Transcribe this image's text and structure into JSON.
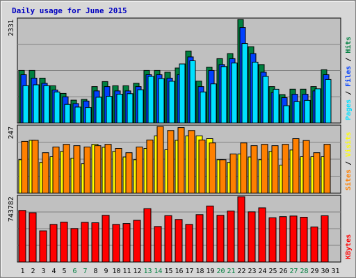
{
  "chart_data": {
    "type": "bar",
    "title": "Daily usage for June 2015",
    "x": [
      "1",
      "2",
      "3",
      "4",
      "5",
      "6",
      "7",
      "8",
      "9",
      "10",
      "11",
      "12",
      "13",
      "14",
      "15",
      "16",
      "17",
      "18",
      "19",
      "20",
      "21",
      "22",
      "23",
      "24",
      "25",
      "26",
      "27",
      "28",
      "29",
      "30",
      "31"
    ],
    "weekend_days": [
      "6",
      "7",
      "13",
      "14",
      "20",
      "21",
      "27",
      "28"
    ],
    "colors": {
      "hits": "#008040",
      "files": "#0040ff",
      "pages": "#00e0ff",
      "visits": "#ffff00",
      "sites": "#ff8000",
      "kbytes": "#ff0000",
      "weekday_label": "#000000",
      "weekend_label": "#008040",
      "title": "#0000c0",
      "panel_bg": "#c0c0c0",
      "frame_bg": "#d7d7d7",
      "grid": "#808080"
    },
    "panels": [
      {
        "id": "hits-files-pages",
        "max_label": "2331",
        "ymax": 2331,
        "side_labels": [
          {
            "text": "Pages",
            "color": "#00e0ff"
          },
          {
            "text": " / ",
            "color": "#000000"
          },
          {
            "text": "Files",
            "color": "#0040ff"
          },
          {
            "text": " / ",
            "color": "#000000"
          },
          {
            "text": "Hits",
            "color": "#008040"
          }
        ],
        "series": [
          {
            "name": "Hits",
            "key": "hits",
            "values": [
              1182,
              1182,
              1010,
              838,
              666,
              514,
              532,
              819,
              933,
              838,
              838,
              895,
              1182,
              1182,
              1144,
              1238,
              1620,
              943,
              1258,
              1448,
              1563,
              2331,
              1717,
              1316,
              819,
              640,
              762,
              762,
              819,
              1200,
              null
            ]
          },
          {
            "name": "Files",
            "key": "files",
            "values": [
              1087,
              1010,
              895,
              743,
              590,
              438,
              495,
              723,
              819,
              723,
              723,
              819,
              1087,
              1087,
              1010,
              1087,
              1487,
              819,
              1183,
              1316,
              1448,
              2150,
              1563,
              1144,
              686,
              571,
              647,
              647,
              723,
              1087,
              null
            ]
          },
          {
            "name": "Pages",
            "key": "pages",
            "values": [
              840,
              860,
              840,
              700,
              420,
              360,
              350,
              580,
              600,
              650,
              660,
              750,
              1050,
              1000,
              940,
              1330,
              1400,
              700,
              880,
              1270,
              1350,
              1790,
              1370,
              1050,
              760,
              390,
              480,
              510,
              770,
              980,
              null
            ]
          }
        ]
      },
      {
        "id": "visits-sites",
        "max_label": "247",
        "ymax": 247,
        "side_labels": [
          {
            "text": "Sites",
            "color": "#ff8000"
          },
          {
            "text": " / ",
            "color": "#000000"
          },
          {
            "text": "Visits",
            "color": "#ffff00"
          }
        ],
        "series": [
          {
            "name": "Visits",
            "key": "visits",
            "values": [
              124,
              196,
              114,
              135,
              155,
              130,
              109,
              181,
              170,
              155,
              134,
              124,
              166,
              212,
              161,
              196,
              212,
              212,
              202,
              124,
              114,
              145,
              134,
              124,
              155,
              104,
              160,
              135,
              135,
              135,
              null
            ]
          },
          {
            "name": "Sites",
            "key": "sites",
            "values": [
              192,
              196,
              150,
              171,
              181,
              176,
              171,
              176,
              181,
              166,
              150,
              171,
              197,
              247,
              232,
              243,
              232,
              197,
              186,
              124,
              145,
              186,
              176,
              181,
              176,
              181,
              202,
              195,
              150,
              181,
              null
            ]
          }
        ]
      },
      {
        "id": "kbytes",
        "max_label": "743782",
        "ymax": 743782,
        "side_labels": [
          {
            "text": "KBytes",
            "color": "#ff0000"
          }
        ],
        "series": [
          {
            "name": "KBytes",
            "key": "kbytes",
            "values": [
              587000,
              561000,
              355000,
              428000,
              454000,
              381000,
              452000,
              447000,
              532000,
              428000,
              438000,
              475000,
              608000,
              404000,
              528000,
              484000,
              428000,
              540000,
              638000,
              532000,
              580000,
              743782,
              571000,
              617000,
              504000,
              517000,
              524000,
              510000,
              399000,
              527000,
              null
            ]
          }
        ]
      }
    ]
  }
}
